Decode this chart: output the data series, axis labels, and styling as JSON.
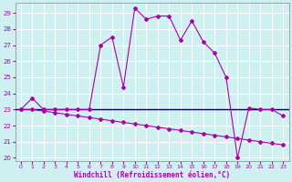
{
  "xlabel": "Windchill (Refroidissement éolien,°C)",
  "xlim": [
    -0.5,
    23.5
  ],
  "ylim": [
    19.8,
    29.6
  ],
  "yticks": [
    20,
    21,
    22,
    23,
    24,
    25,
    26,
    27,
    28,
    29
  ],
  "xticks": [
    0,
    1,
    2,
    3,
    4,
    5,
    6,
    7,
    8,
    9,
    10,
    11,
    12,
    13,
    14,
    15,
    16,
    17,
    18,
    19,
    20,
    21,
    22,
    23
  ],
  "bg_color": "#cff0f0",
  "grid_color": "#ffffff",
  "line_color": "#aa00aa",
  "hline_color": "#000044",
  "curve1_x": [
    0,
    1,
    2,
    3,
    4,
    5,
    6,
    7,
    8,
    9,
    10,
    11,
    12,
    13,
    14,
    15,
    16,
    17,
    18,
    19,
    20,
    21,
    22,
    23
  ],
  "curve1_y": [
    23.0,
    23.7,
    23.0,
    23.0,
    23.0,
    23.0,
    23.0,
    27.0,
    27.5,
    24.4,
    29.3,
    28.6,
    28.8,
    28.8,
    27.3,
    28.5,
    27.2,
    26.5,
    25.0,
    20.0,
    23.1,
    23.0,
    23.0,
    22.6
  ],
  "curve2_x": [
    0,
    1,
    2,
    3,
    4,
    5,
    6,
    7,
    8,
    9,
    10,
    11,
    12,
    13,
    14,
    15,
    16,
    17,
    18,
    19,
    20,
    21,
    22,
    23
  ],
  "curve2_y": [
    23.0,
    23.0,
    22.9,
    22.8,
    22.7,
    22.6,
    22.5,
    22.4,
    22.3,
    22.2,
    22.1,
    22.0,
    21.9,
    21.8,
    21.7,
    21.6,
    21.5,
    21.4,
    21.3,
    21.2,
    21.1,
    21.0,
    20.9,
    20.8
  ],
  "hline_y": 23.0
}
